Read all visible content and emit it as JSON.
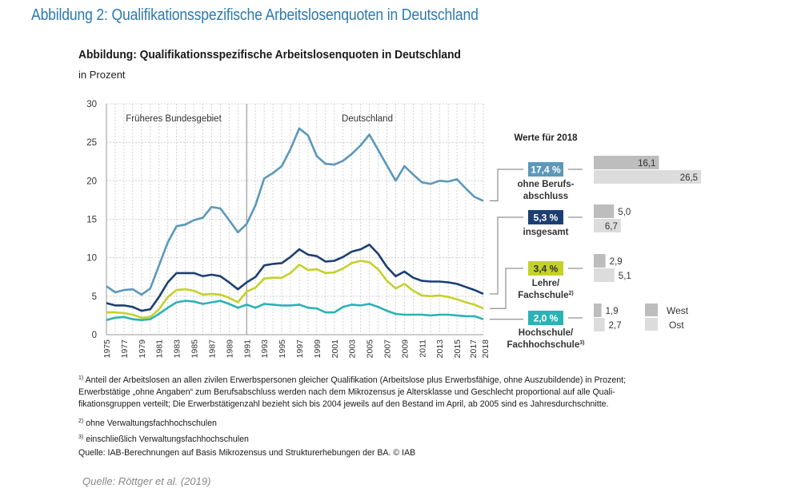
{
  "doc_title": "Abbildung 2: Qualifikationsspezifische Arbeitslosenquoten in Deutschland",
  "figure": {
    "title": "Abbildung: Qualifikationsspezifische Arbeitslosenquoten in Deutschland",
    "subtitle": "in Prozent",
    "region_labels": {
      "west": "Früheres Bundesgebiet",
      "germany": "Deutschland"
    },
    "values_header": "Werte für 2018",
    "legend": {
      "west": "West",
      "ost": "Ost"
    }
  },
  "colors": {
    "ohne": "#5b98bb",
    "insgesamt": "#1c3f73",
    "lehre": "#c4d12a",
    "hochschule": "#2ab3b6",
    "west_bar": "#bdbdbd",
    "ost_bar": "#dcdcdc",
    "grid": "#c8c8c8",
    "title_blue": "#2c7ab0"
  },
  "chart_data": {
    "type": "line",
    "title": "Abbildung: Qualifikationsspezifische Arbeitslosenquoten in Deutschland",
    "subtitle": "in Prozent",
    "xlabel": "",
    "ylabel": "in Prozent",
    "ylim": [
      0,
      30
    ],
    "yticks": [
      0,
      5,
      10,
      15,
      20,
      25,
      30
    ],
    "grid": true,
    "x": [
      1975,
      1976,
      1977,
      1978,
      1979,
      1980,
      1981,
      1982,
      1983,
      1984,
      1985,
      1986,
      1987,
      1988,
      1989,
      1990,
      1991,
      1992,
      1993,
      1994,
      1995,
      1996,
      1997,
      1998,
      1999,
      2000,
      2001,
      2002,
      2003,
      2004,
      2005,
      2006,
      2007,
      2008,
      2009,
      2010,
      2011,
      2012,
      2013,
      2014,
      2015,
      2016,
      2017,
      2018
    ],
    "xtick_labels": [
      "1975",
      "1977",
      "1979",
      "1981",
      "1983",
      "1985",
      "1987",
      "1989",
      "1991",
      "1993",
      "1995",
      "1997",
      "1999",
      "2001",
      "2003",
      "2005",
      "2007",
      "2009",
      "2011",
      "2013",
      "2015",
      "2017",
      "2018"
    ],
    "divider_year": 1991,
    "series": [
      {
        "key": "ohne",
        "name": "ohne Berufsabschluss",
        "label_2018": "17,4 %",
        "label_lines": [
          "ohne Berufs-",
          "abschluss"
        ],
        "values": [
          6.3,
          5.5,
          5.8,
          5.9,
          5.2,
          6.0,
          9.0,
          12.0,
          14.1,
          14.3,
          14.9,
          15.2,
          16.6,
          16.4,
          14.9,
          13.3,
          14.4,
          16.8,
          20.3,
          21.0,
          21.9,
          24.1,
          26.8,
          25.9,
          23.2,
          22.2,
          22.1,
          22.6,
          23.5,
          24.6,
          26.0,
          24.0,
          22.0,
          20.0,
          21.9,
          20.8,
          19.8,
          19.6,
          20.0,
          19.9,
          20.2,
          19.0,
          17.9,
          17.4
        ],
        "west_2018": "16,1",
        "ost_2018": "26,5",
        "west_value": 16.1,
        "ost_value": 26.5
      },
      {
        "key": "insgesamt",
        "name": "insgesamt",
        "label_2018": "5,3 %",
        "label_lines": [
          "insgesamt"
        ],
        "values": [
          4.1,
          3.8,
          3.8,
          3.6,
          3.1,
          3.3,
          4.9,
          6.8,
          8.0,
          8.0,
          8.0,
          7.6,
          7.8,
          7.6,
          6.8,
          5.9,
          6.8,
          7.5,
          9.0,
          9.2,
          9.3,
          10.1,
          11.1,
          10.4,
          10.2,
          9.5,
          9.6,
          10.1,
          10.8,
          11.1,
          11.7,
          10.5,
          8.8,
          7.6,
          8.2,
          7.4,
          7.0,
          6.9,
          6.9,
          6.8,
          6.6,
          6.2,
          5.8,
          5.3
        ],
        "west_2018": "5,0",
        "ost_2018": "6,7",
        "west_value": 5.0,
        "ost_value": 6.7
      },
      {
        "key": "lehre",
        "name": "Lehre/Fachschule",
        "label_2018": "3,4 %",
        "label_lines": [
          "Lehre/",
          "Fachschule"
        ],
        "footnote": "2)",
        "values": [
          2.9,
          2.9,
          2.8,
          2.6,
          2.2,
          2.3,
          3.3,
          4.9,
          5.8,
          5.9,
          5.7,
          5.2,
          5.3,
          5.2,
          4.8,
          4.2,
          5.6,
          6.1,
          7.3,
          7.4,
          7.4,
          8.0,
          9.1,
          8.4,
          8.5,
          8.0,
          8.1,
          8.6,
          9.3,
          9.6,
          9.4,
          8.5,
          7.0,
          6.0,
          6.6,
          5.7,
          5.1,
          5.0,
          5.1,
          4.9,
          4.6,
          4.2,
          3.9,
          3.4
        ],
        "west_2018": "2,9",
        "ost_2018": "5,1",
        "west_value": 2.9,
        "ost_value": 5.1
      },
      {
        "key": "hochschule",
        "name": "Hochschule/Fachhochschule",
        "label_2018": "2,0 %",
        "label_lines": [
          "Hochschule/",
          "Fachhochschule"
        ],
        "footnote": "3)",
        "values": [
          1.9,
          2.2,
          2.3,
          2.0,
          1.9,
          2.0,
          2.7,
          3.5,
          4.2,
          4.4,
          4.3,
          4.0,
          4.2,
          4.4,
          4.0,
          3.5,
          3.9,
          3.5,
          4.0,
          3.9,
          3.8,
          3.8,
          3.9,
          3.5,
          3.4,
          2.9,
          2.9,
          3.6,
          3.9,
          3.8,
          4.0,
          3.6,
          3.1,
          2.7,
          2.6,
          2.6,
          2.6,
          2.5,
          2.6,
          2.6,
          2.5,
          2.4,
          2.4,
          2.0
        ],
        "west_2018": "1,9",
        "ost_2018": "2,7",
        "west_value": 1.9,
        "ost_value": 2.7
      }
    ],
    "legend": [
      "West",
      "Ost"
    ],
    "annotations": [
      "Früheres Bundesgebiet",
      "Deutschland",
      "Werte für 2018"
    ]
  },
  "footnotes": {
    "f1_mark": "1)",
    "f1_lines": [
      "Anteil der Arbeitslosen an allen zivilen Erwerbspersonen gleicher Qualifikation (Arbeitslose plus Erwerbsfähige, ohne Auszubildende) in Prozent;",
      "Erwerbstätige „ohne Angaben“ zum Berufsabschluss werden nach dem Mikrozensus je Altersklasse und Geschlecht proportional auf alle Quali-",
      "fikationsgruppen verteilt; Die Erwerbstätigenzahl bezieht sich bis 2004 jeweils auf den Bestand im April, ab 2005 sind es Jahresdurchschnitte."
    ],
    "f2_mark": "2)",
    "f2": "ohne Verwaltungsfachhochschulen",
    "f3_mark": "3)",
    "f3": "einschließlich Verwaltungsfachhochschulen",
    "source": "Quelle: IAB-Berechnungen auf Basis Mikrozensus und Strukturerhebungen der BA. © IAB"
  },
  "source_italic": "Quelle: Röttger et al. (2019)"
}
